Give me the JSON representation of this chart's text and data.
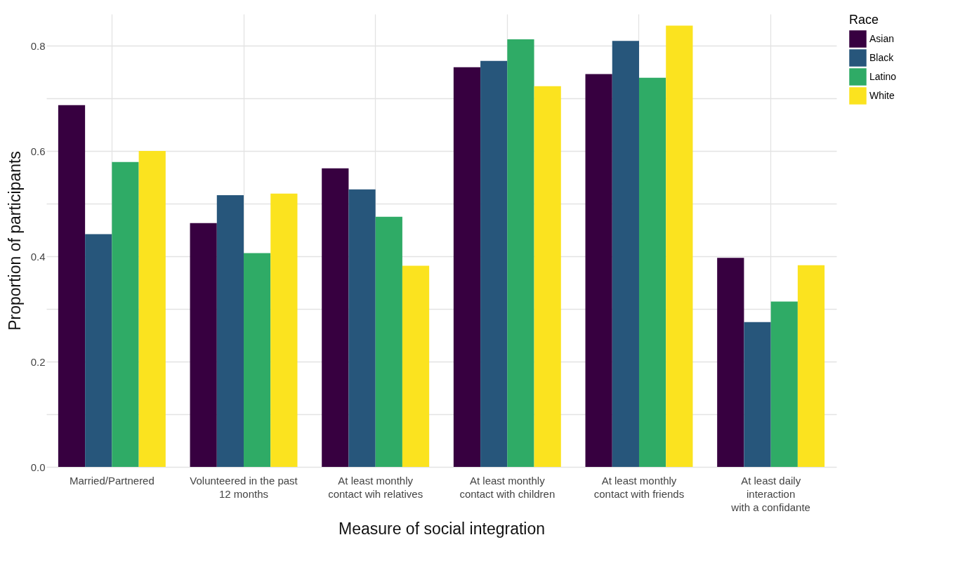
{
  "chart_data": {
    "type": "bar",
    "xlabel": "Measure of social integration",
    "ylabel": "Proportion of participants",
    "legend_title": "Race",
    "legend": "right",
    "grid": true,
    "categories": [
      "Married/Partnered",
      "Volunteered in the past\n12 months",
      "At least monthly\ncontact wih relatives",
      "At least monthly\ncontact with children",
      "At least monthly\ncontact with friends",
      "At least daily\ninteraction\nwith a confidante"
    ],
    "series": [
      {
        "name": "Asian",
        "color": "#370040",
        "values": [
          0.687,
          0.463,
          0.567,
          0.759,
          0.746,
          0.397
        ]
      },
      {
        "name": "Black",
        "color": "#27567b",
        "values": [
          0.442,
          0.516,
          0.527,
          0.771,
          0.809,
          0.275
        ]
      },
      {
        "name": "Latino",
        "color": "#2fab66",
        "values": [
          0.579,
          0.406,
          0.475,
          0.812,
          0.739,
          0.314
        ]
      },
      {
        "name": "White",
        "color": "#fbe31f",
        "values": [
          0.6,
          0.519,
          0.382,
          0.723,
          0.838,
          0.383
        ]
      }
    ],
    "ylim": [
      0,
      0.86
    ],
    "yticks": [
      {
        "value": 0,
        "label": "0.0"
      },
      {
        "value": 0.1,
        "label": null
      },
      {
        "value": 0.2,
        "label": "0.2"
      },
      {
        "value": 0.3,
        "label": null
      },
      {
        "value": 0.4,
        "label": "0.4"
      },
      {
        "value": 0.5,
        "label": null
      },
      {
        "value": 0.6,
        "label": "0.6"
      },
      {
        "value": 0.7,
        "label": null
      },
      {
        "value": 0.8,
        "label": "0.8"
      }
    ]
  }
}
